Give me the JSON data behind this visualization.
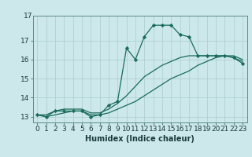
{
  "title": "",
  "xlabel": "Humidex (Indice chaleur)",
  "ylabel": "",
  "bg_color": "#cce8ea",
  "line_color": "#1a6b5a",
  "grid_color": "#aacccc",
  "x_values": [
    0,
    1,
    2,
    3,
    4,
    5,
    6,
    7,
    8,
    9,
    10,
    11,
    12,
    13,
    14,
    15,
    16,
    17,
    18,
    19,
    20,
    21,
    22,
    23
  ],
  "line1_y": [
    13.1,
    13.0,
    13.3,
    13.3,
    13.3,
    13.3,
    13.0,
    13.1,
    13.6,
    13.8,
    16.6,
    16.0,
    17.2,
    17.8,
    17.8,
    17.8,
    17.3,
    17.2,
    16.2,
    16.2,
    16.2,
    16.2,
    16.1,
    15.8
  ],
  "line2_y": [
    13.1,
    13.0,
    13.1,
    13.2,
    13.3,
    13.3,
    13.1,
    13.1,
    13.2,
    13.4,
    13.6,
    13.8,
    14.1,
    14.4,
    14.7,
    15.0,
    15.2,
    15.4,
    15.7,
    15.9,
    16.1,
    16.2,
    16.2,
    16.0
  ],
  "line3_y": [
    13.1,
    13.1,
    13.3,
    13.4,
    13.4,
    13.4,
    13.2,
    13.2,
    13.4,
    13.7,
    14.1,
    14.6,
    15.1,
    15.4,
    15.7,
    15.9,
    16.1,
    16.2,
    16.2,
    16.2,
    16.2,
    16.2,
    16.1,
    15.9
  ],
  "xlim": [
    -0.5,
    23.5
  ],
  "ylim": [
    12.7,
    18.3
  ],
  "yticks": [
    13,
    14,
    15,
    16,
    17
  ],
  "ytick_top": "17",
  "xtick_labels": [
    "0",
    "1",
    "2",
    "3",
    "4",
    "5",
    "6",
    "7",
    "8",
    "9",
    "10",
    "11",
    "12",
    "13",
    "14",
    "15",
    "16",
    "17",
    "18",
    "19",
    "20",
    "21",
    "22",
    "23"
  ],
  "title_fontsize": 7,
  "xlabel_fontsize": 7,
  "tick_fontsize": 6.5
}
